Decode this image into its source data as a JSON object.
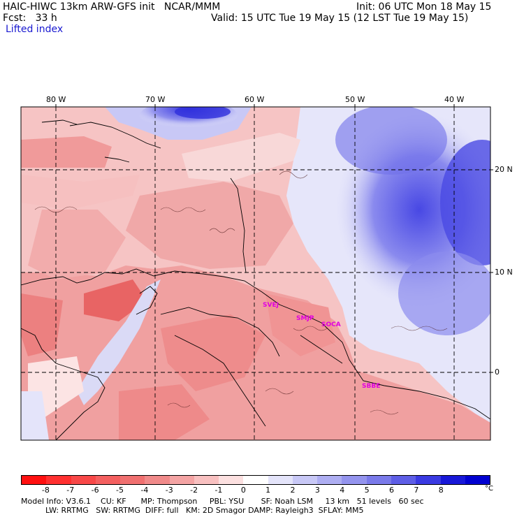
{
  "header": {
    "model": "HAIC-HIWC 13km ARW-GFS init   NCAR/MMM",
    "init": "Init: 06 UTC Mon 18 May 15",
    "fcst": "Fcst:   33 h",
    "valid": "Valid: 15 UTC Tue 19 May 15 (12 LST Tue 19 May 15)",
    "field": "Lifted index"
  },
  "map": {
    "lon_labels": [
      "80 W",
      "70 W",
      "60 W",
      "50 W",
      "40 W"
    ],
    "lat_labels": [
      "20 N",
      "10 N",
      "0"
    ],
    "sites": [
      "SVEJ",
      "SMJP",
      "SOCA",
      "SBBE"
    ],
    "colors": {
      "frame": "#000000",
      "grid": "#000000",
      "site": "#e000e0"
    }
  },
  "legend": {
    "ticks": [
      "-8",
      "-7",
      "-6",
      "-5",
      "-4",
      "-3",
      "-2",
      "-1",
      "0",
      "1",
      "2",
      "3",
      "4",
      "5",
      "6",
      "7",
      "8"
    ],
    "unit": "°C",
    "colors": [
      "#ff1010",
      "#ff3030",
      "#f84848",
      "#f46060",
      "#f07070",
      "#f08a8a",
      "#f4a4a4",
      "#f8c0c0",
      "#fce0e0",
      "#ffffff",
      "#e4e4fa",
      "#c8c8f6",
      "#aeaef2",
      "#9494ee",
      "#7a7aea",
      "#5e5ee6",
      "#3a3ae2",
      "#1818d8",
      "#0000d0"
    ]
  },
  "footer": {
    "line1": "Model Info: V3.6.1    CU: KF      MP: Thompson     PBL: YSU       SF: Noah LSM     13 km   51 levels   60 sec",
    "line2": "          LW: RRTMG   SW: RRTMG  DIFF: full   KM: 2D Smagor DAMP: Rayleigh3  SFLAY: MM5"
  }
}
